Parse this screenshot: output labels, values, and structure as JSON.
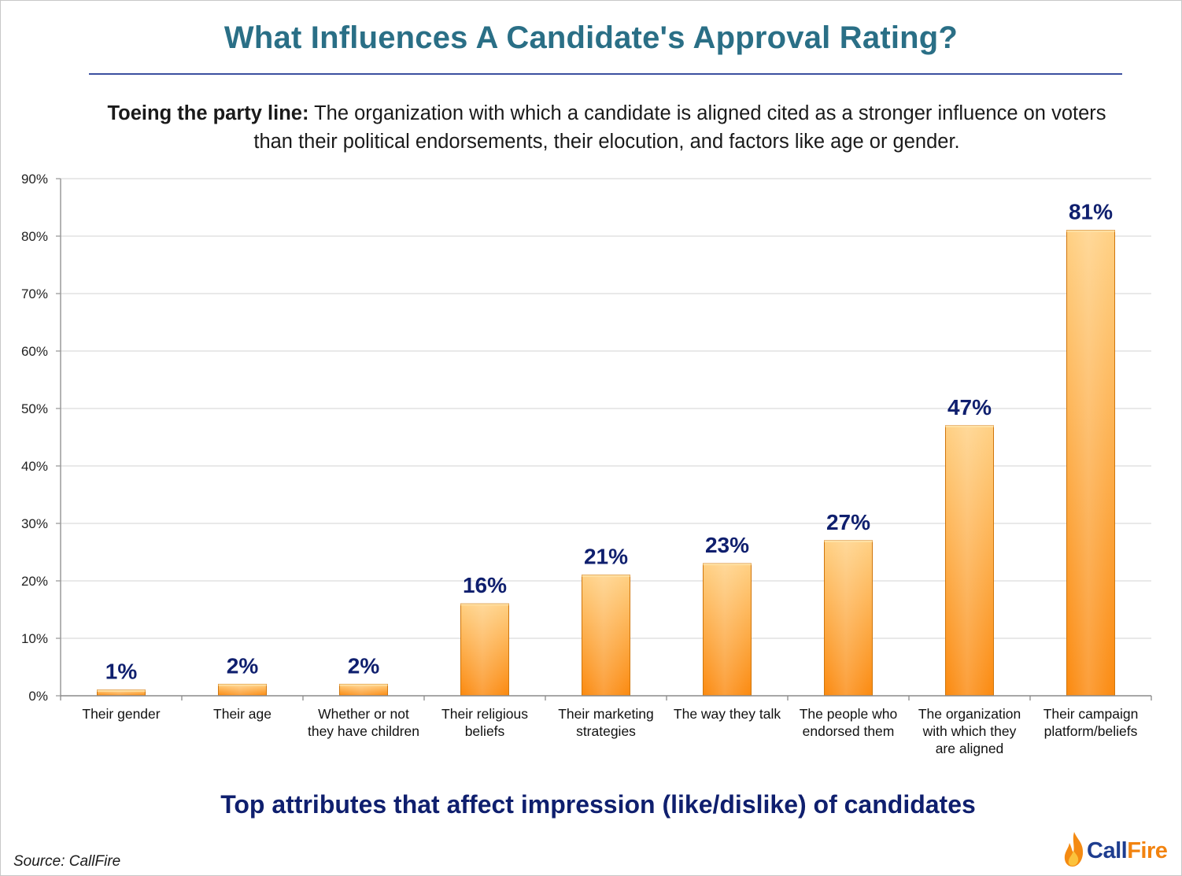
{
  "title": "What Influences A Candidate's Approval Rating?",
  "subtitle_lead": "Toeing the party line:",
  "subtitle_body": " The organization with which a candidate is aligned cited as a stronger influence on voters than their political endorsements, their elocution, and factors like age or gender.",
  "caption": "Top attributes that affect impression (like/dislike) of candidates",
  "source": "Source: CallFire",
  "logo": {
    "part1": "Call",
    "part2": "Fire",
    "icon": "flame-icon"
  },
  "colors": {
    "title": "#2a6f86",
    "bar_light": "#ffcf7a",
    "bar_dark": "#fb8b12",
    "data_label": "#0f1f6e"
  },
  "chart_data": {
    "type": "bar",
    "categories": [
      [
        "Their gender"
      ],
      [
        "Their age"
      ],
      [
        "Whether or not",
        "they have children"
      ],
      [
        "Their religious",
        "beliefs"
      ],
      [
        "Their marketing",
        "strategies"
      ],
      [
        "The way they talk"
      ],
      [
        "The people who",
        "endorsed them"
      ],
      [
        "The organization",
        "with which they",
        "are aligned"
      ],
      [
        "Their campaign",
        "platform/beliefs"
      ]
    ],
    "values": [
      1,
      2,
      2,
      16,
      21,
      23,
      27,
      47,
      81
    ],
    "data_labels": [
      "1%",
      "2%",
      "2%",
      "16%",
      "21%",
      "23%",
      "27%",
      "47%",
      "81%"
    ],
    "ylim": [
      0,
      90
    ],
    "yticks": [
      0,
      10,
      20,
      30,
      40,
      50,
      60,
      70,
      80,
      90
    ],
    "ytick_labels": [
      "0%",
      "10%",
      "20%",
      "30%",
      "40%",
      "50%",
      "60%",
      "70%",
      "80%",
      "90%"
    ],
    "grid": true,
    "legend": "none"
  }
}
